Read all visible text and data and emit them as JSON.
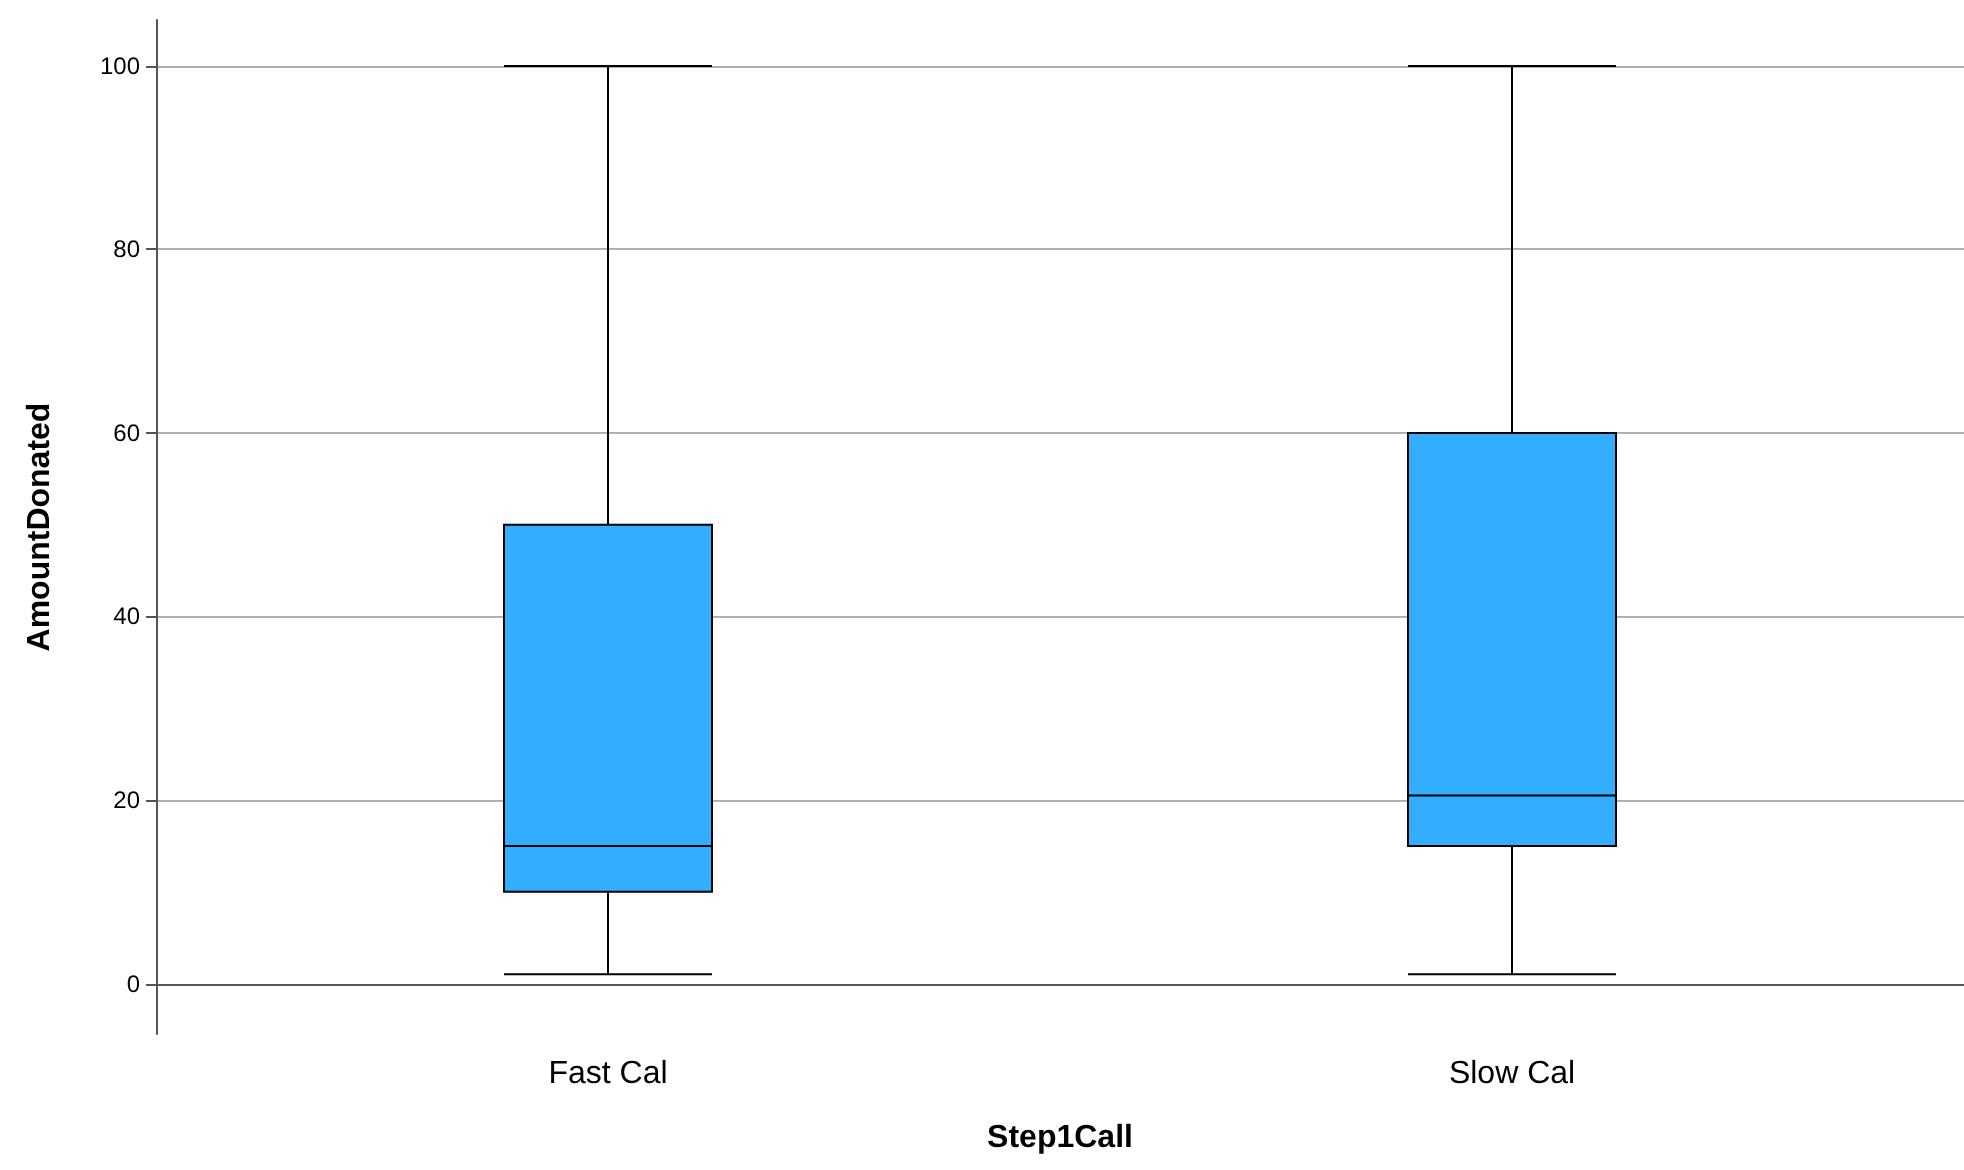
{
  "chart_data": {
    "type": "box",
    "xlabel": "Step1Call",
    "ylabel": "AmountDonated",
    "categories": [
      "Fast Cal",
      "Slow Cal"
    ],
    "series": [
      {
        "color": "#33adff",
        "boxes": [
          {
            "low": 1,
            "q1": 10,
            "median": 15,
            "q3": 50,
            "high": 100
          },
          {
            "low": 1,
            "q1": 15,
            "median": 20.5,
            "q3": 60,
            "high": 100
          }
        ]
      }
    ],
    "ylim": [
      -5.5,
      105
    ],
    "yticks": [
      0,
      20,
      40,
      60,
      80,
      100
    ],
    "grid": "y"
  }
}
